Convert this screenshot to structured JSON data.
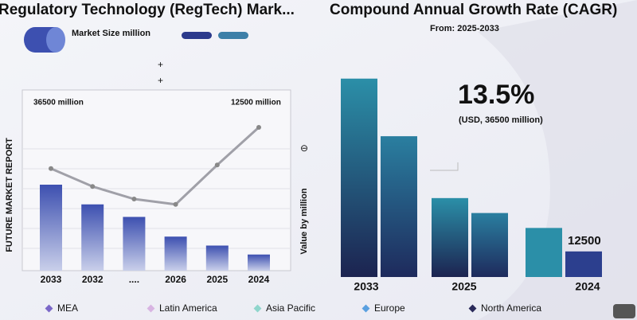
{
  "chart_data": [
    {
      "type": "bar",
      "title": "Regulatory Technology (RegTech)  Mark...",
      "y_label": "FUTURE MARKET REPORT",
      "annotations": [
        "36500 million",
        "12500 million"
      ],
      "categories": [
        "2033",
        "2032",
        "....",
        "2026",
        "2025",
        "2024"
      ],
      "ylim": [
        0,
        100
      ],
      "series": [
        {
          "name": "Market Size million",
          "color": "#3d50b0",
          "values": [
            48,
            37,
            30,
            19,
            14,
            9
          ]
        },
        {
          "type": "line",
          "color": "#a0a0a8",
          "values": [
            57,
            47,
            40,
            37,
            59,
            80
          ]
        }
      ]
    },
    {
      "type": "bar",
      "title": "Compound Annual Growth Rate (CAGR)",
      "subtitle": "From: 2025-2033",
      "y_label": "Value by million",
      "annotations": [
        "13.5%",
        "(USD, 36500 million)",
        "12500"
      ],
      "categories": [
        "2033",
        "2025",
        "2024"
      ],
      "ylim": [
        0,
        100
      ],
      "series": [
        {
          "color": "#2b8fa8",
          "values": [
            93,
            37,
            23
          ]
        },
        {
          "color": "#2c3f8e",
          "values": [
            66,
            30,
            12
          ]
        }
      ]
    }
  ],
  "legend": [
    {
      "name": "MEA",
      "color": "#7b68c8"
    },
    {
      "name": "Latin America",
      "color": "#d8b4e2"
    },
    {
      "name": "Asia Pacific",
      "color": "#8fd6cc"
    },
    {
      "name": "Europe",
      "color": "#5aa0e0"
    },
    {
      "name": "North America",
      "color": "#2a2a5a"
    }
  ]
}
